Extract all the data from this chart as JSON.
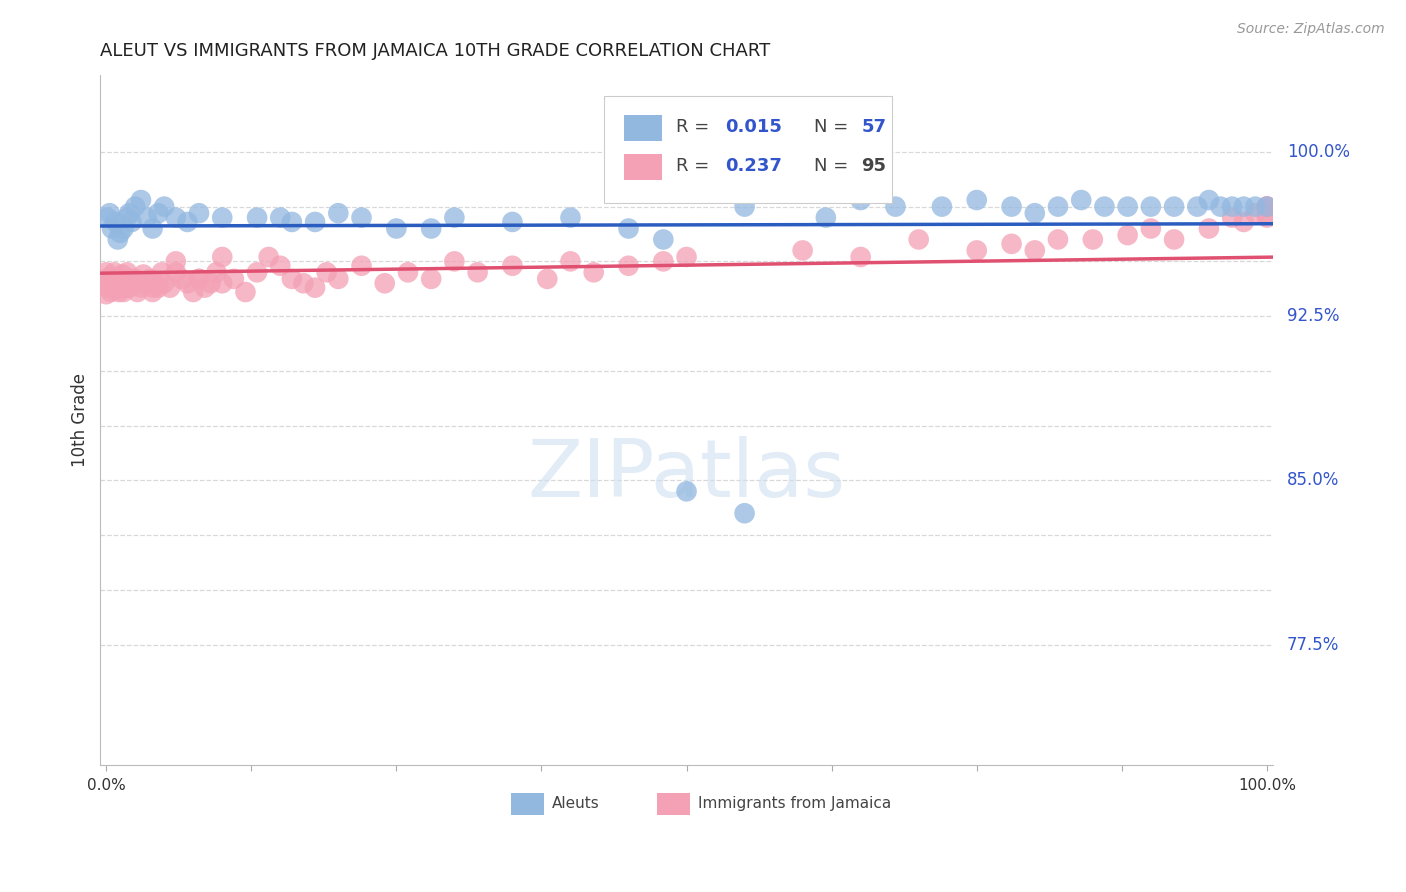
{
  "title": "ALEUT VS IMMIGRANTS FROM JAMAICA 10TH GRADE CORRELATION CHART",
  "source": "Source: ZipAtlas.com",
  "ylabel": "10th Grade",
  "ymin": 0.72,
  "ymax": 1.035,
  "xmin": -0.005,
  "xmax": 1.005,
  "watermark": "ZIPatlas",
  "legend_r1": "0.015",
  "legend_n1": "57",
  "legend_r2": "0.237",
  "legend_n2": "95",
  "aleut_color": "#92b8e0",
  "jamaica_color": "#f4a0b5",
  "trendline_aleut_color": "#2b5cbf",
  "trendline_jamaica_color": "#e05070",
  "grid_color": "#d8d8d8",
  "ytick_positions": [
    0.775,
    0.8,
    0.825,
    0.85,
    0.875,
    0.9,
    0.925,
    0.95,
    0.975,
    1.0
  ],
  "ytick_labels": {
    "0.775": "77.5%",
    "0.850": "85.0%",
    "0.925": "92.5%",
    "1.000": "100.0%"
  },
  "xtick_labels": {
    "0.0": "0.0%",
    "1.0": "100.0%"
  },
  "bottom_legend_labels": [
    "Aleuts",
    "Immigrants from Jamaica"
  ],
  "title_fontsize": 13,
  "source_fontsize": 10,
  "axis_label_fontsize": 12,
  "ytick_fontsize": 12,
  "legend_fontsize": 13
}
